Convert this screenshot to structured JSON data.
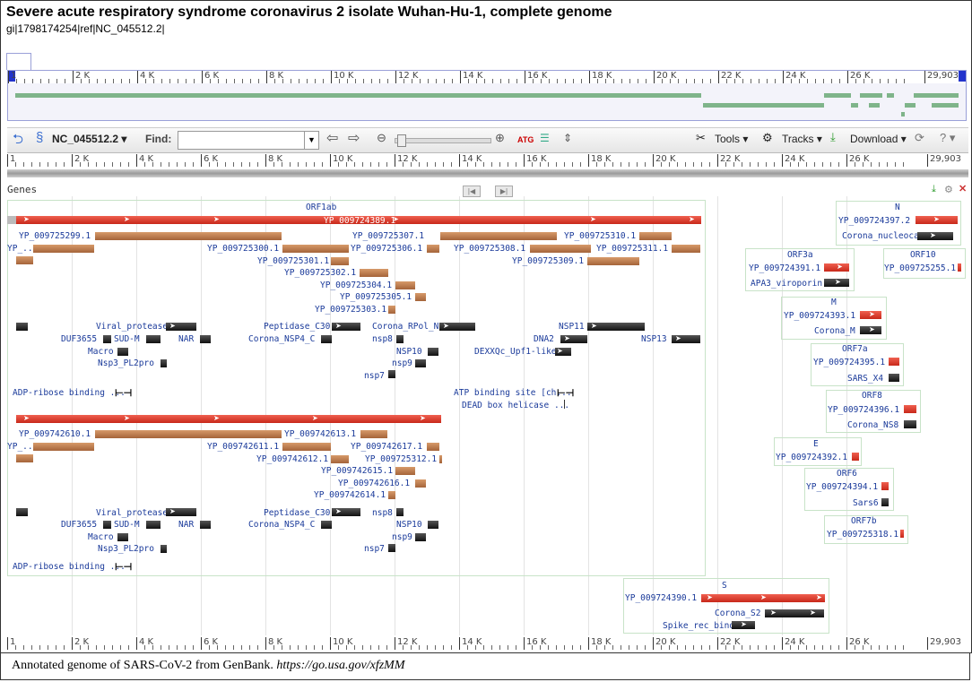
{
  "header": {
    "title": "Severe acute respiratory syndrome coronavirus 2 isolate Wuhan-Hu-1, complete genome",
    "subtitle": "gi|1798174254|ref|NC_045512.2|"
  },
  "ruler": {
    "labels": [
      "1",
      "2 K",
      "4 K",
      "6 K",
      "8 K",
      "10 K",
      "12 K",
      "14 K",
      "16 K",
      "18 K",
      "20 K",
      "22 K",
      "24 K",
      "26 K",
      "29,903"
    ]
  },
  "toolbar": {
    "sequence": "NC_045512.2",
    "find_label": "Find:",
    "find_value": "",
    "tools_label": "Tools",
    "tracks_label": "Tracks",
    "download_label": "Download"
  },
  "track": {
    "name": "Genes"
  },
  "genes": {
    "orf1ab": {
      "title": "ORF1ab",
      "protein": "YP_009724389.1",
      "products": [
        "YP_009725299.1",
        "YP_...",
        "YP_009725300.1",
        "YP_009725301.1",
        "YP_009725302.1",
        "YP_009725304.1",
        "YP_009725305.1",
        "YP_009725303.1",
        "YP_009725307.1",
        "YP_009725306.1",
        "YP_009725308.1",
        "YP_009725309.1",
        "YP_009725310.1",
        "YP_009725311.1"
      ],
      "domains": [
        "Viral_protease",
        "DUF3655",
        "SUD-M",
        "NAR",
        "Macro",
        "Nsp3_PL2pro",
        "Peptidase_C30",
        "Corona_NSP4_C",
        "Corona_RPol_N",
        "nsp8",
        "NSP10",
        "nsp9",
        "nsp7",
        "NSP11",
        "DNA2",
        "NSP13",
        "DEXXQc_Upf1-like",
        "ADP-ribose binding ...",
        "ATP binding site [ch...",
        "DEAD box helicase ..."
      ]
    },
    "orf1a": {
      "protein": "YP_009742610.1",
      "products": [
        "YP_...",
        "YP_009742613.1",
        "YP_009742611.1",
        "YP_009742617.1",
        "YP_009742612.1",
        "YP_009725312.1",
        "YP_009742615.1",
        "YP_009742616.1",
        "YP_009742614.1"
      ],
      "domains": [
        "Viral_protease",
        "DUF3655",
        "SUD-M",
        "NAR",
        "Macro",
        "Nsp3_PL2pro",
        "Peptidase_C30",
        "Corona_NSP4_C",
        "nsp8",
        "NSP10",
        "nsp9",
        "nsp7",
        "ADP-ribose binding ..."
      ]
    },
    "n": {
      "title": "N",
      "protein": "YP_009724397.2",
      "domain": "Corona_nucleoca"
    },
    "orf3a": {
      "title": "ORF3a",
      "protein": "YP_009724391.1",
      "domain": "APA3_viroporin"
    },
    "orf10": {
      "title": "ORF10",
      "protein": "YP_009725255.1"
    },
    "m": {
      "title": "M",
      "protein": "YP_009724393.1",
      "domain": "Corona_M"
    },
    "orf7a": {
      "title": "ORF7a",
      "protein": "YP_009724395.1",
      "domain": "SARS_X4"
    },
    "orf8": {
      "title": "ORF8",
      "protein": "YP_009724396.1",
      "domain": "Corona_NS8"
    },
    "e": {
      "title": "E",
      "protein": "YP_009724392.1"
    },
    "orf6": {
      "title": "ORF6",
      "protein": "YP_009724394.1",
      "domain": "Sars6"
    },
    "orf7b": {
      "title": "ORF7b",
      "protein": "YP_009725318.1"
    },
    "s": {
      "title": "S",
      "protein": "YP_009724390.1",
      "domain1": "Corona_S2",
      "domain2": "Spike_rec_bind"
    }
  },
  "caption": {
    "text": "Annotated genome of SARS-CoV-2 from GenBank. ",
    "link": "https://go.usa.gov/xfzMM"
  }
}
